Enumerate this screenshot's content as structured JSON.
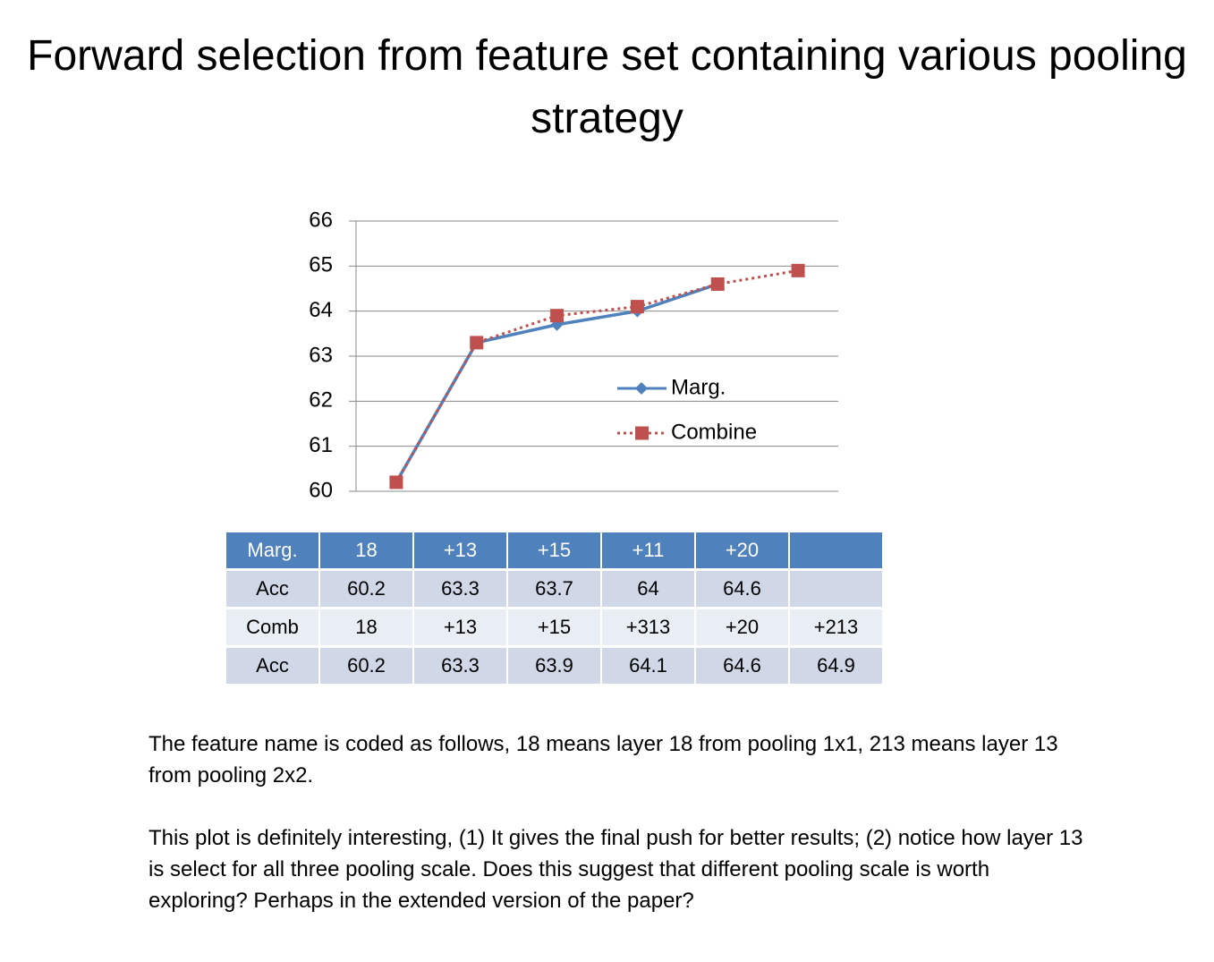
{
  "title": "Forward selection from feature set containing various pooling strategy",
  "chart_data": {
    "type": "line",
    "categories": [
      null,
      null,
      null,
      null,
      null,
      null
    ],
    "series": [
      {
        "name": "Marg.",
        "color": "#4f81bd",
        "marker": "diamond",
        "dash": "solid",
        "values": [
          60.2,
          63.3,
          63.7,
          64,
          64.6,
          null
        ]
      },
      {
        "name": "Combine",
        "color": "#c0504d",
        "marker": "square",
        "dash": "dotted",
        "values": [
          60.2,
          63.3,
          63.9,
          64.1,
          64.6,
          64.9
        ]
      }
    ],
    "ylim": [
      60,
      66
    ],
    "yticks": [
      60,
      61,
      62,
      63,
      64,
      65,
      66
    ],
    "grid": true,
    "legend": "right"
  },
  "table": {
    "rows": [
      [
        "Marg.",
        "18",
        "+13",
        "+15",
        "+11",
        "+20",
        null
      ],
      [
        "Acc",
        "60.2",
        "63.3",
        "63.7",
        "64",
        "64.6",
        null
      ],
      [
        "Comb",
        "18",
        "+13",
        "+15",
        "+313",
        "+20",
        "+213"
      ],
      [
        "Acc",
        "60.2",
        "63.3",
        "63.9",
        "64.1",
        "64.6",
        "64.9"
      ]
    ]
  },
  "notes": [
    "The feature name is coded as follows, 18 means layer 18 from pooling 1x1, 213 means layer 13 from pooling 2x2.",
    "This plot is definitely interesting, (1) It gives the final push for better results; (2) notice how layer 13 is select for all three pooling scale. Does this suggest that different pooling scale is worth exploring? Perhaps in the extended version of the paper?"
  ]
}
